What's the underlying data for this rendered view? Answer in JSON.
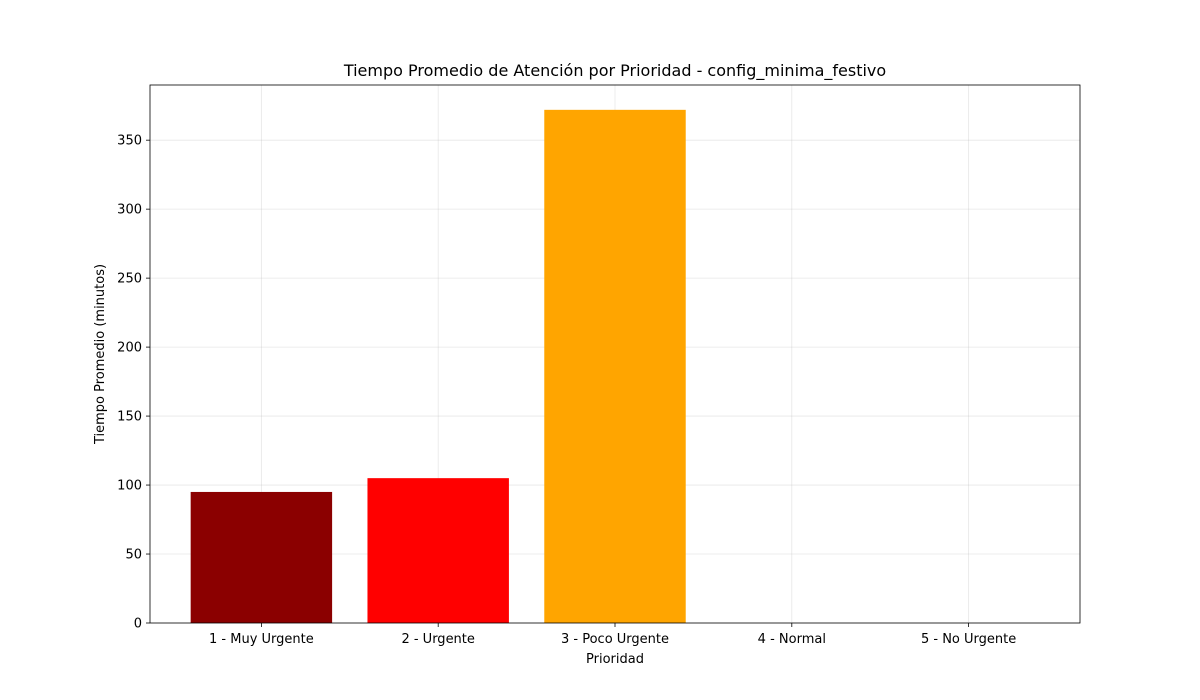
{
  "chart_data": {
    "type": "bar",
    "title": "Tiempo Promedio de Atención por Prioridad - config_minima_festivo",
    "xlabel": "Prioridad",
    "ylabel": "Tiempo Promedio (minutos)",
    "categories": [
      "1 - Muy Urgente",
      "2 - Urgente",
      "3 - Poco Urgente",
      "4 - Normal",
      "5 - No Urgente"
    ],
    "values": [
      95,
      105,
      372,
      0,
      0
    ],
    "colors": [
      "#8b0000",
      "#ff0000",
      "#ffa500",
      "#ffff00",
      "#008000"
    ],
    "ylim": [
      0,
      390
    ],
    "yticks": [
      0,
      50,
      100,
      150,
      200,
      250,
      300,
      350
    ],
    "grid": true,
    "legend": "none"
  }
}
